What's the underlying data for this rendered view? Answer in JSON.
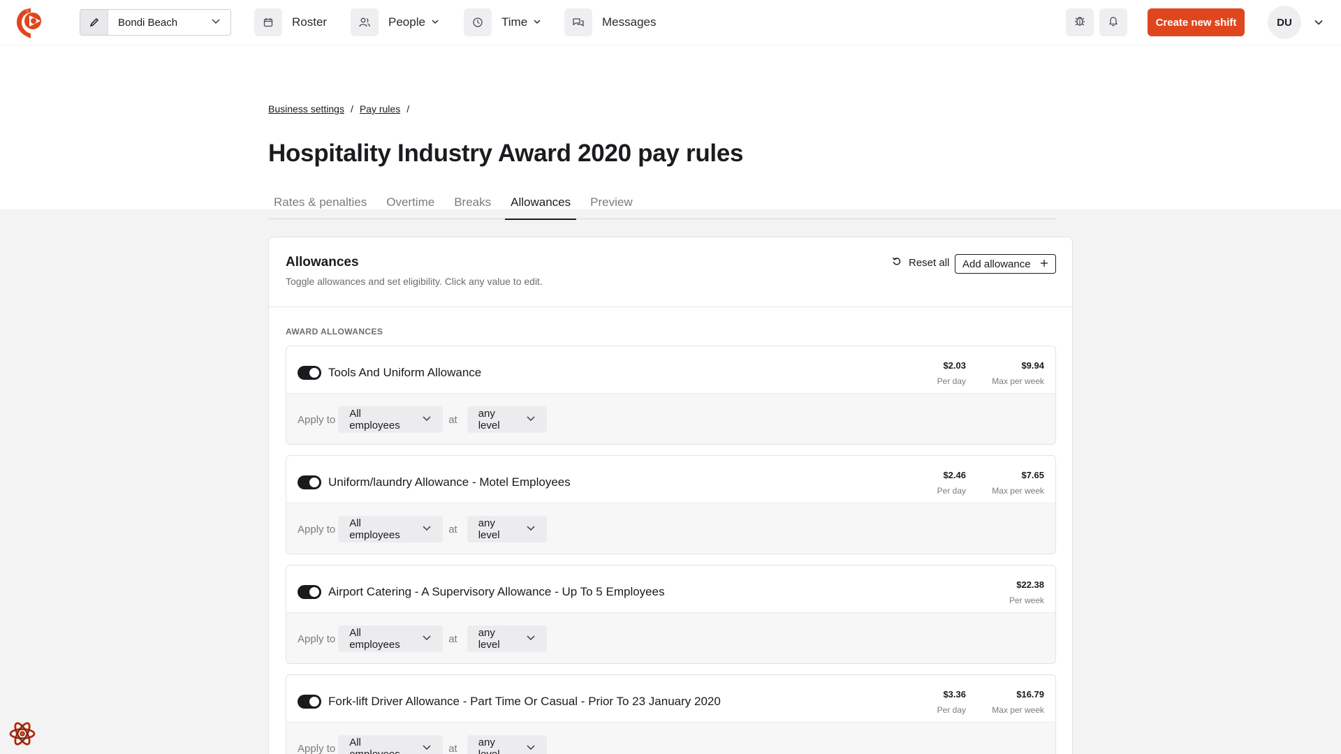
{
  "nav": {
    "location": "Bondi Beach",
    "items": [
      {
        "label": "Roster",
        "icon": "calendar-icon"
      },
      {
        "label": "People",
        "icon": "people-icon"
      },
      {
        "label": "Time",
        "icon": "clock-icon"
      },
      {
        "label": "Messages",
        "icon": "chat-icon"
      }
    ],
    "create_label": "Create new shift",
    "avatar_initials": "DU",
    "brand_color": "#e0461d"
  },
  "breadcrumb": [
    {
      "label": "Business settings"
    },
    {
      "label": "Pay rules"
    }
  ],
  "page": {
    "title": "Hospitality Industry Award 2020 pay rules",
    "tabs": [
      {
        "label": "Rates & penalties",
        "active": false
      },
      {
        "label": "Overtime",
        "active": false
      },
      {
        "label": "Breaks",
        "active": false
      },
      {
        "label": "Allowances",
        "active": true
      },
      {
        "label": "Preview",
        "active": false
      }
    ]
  },
  "card": {
    "title": "Allowances",
    "subtitle": "Toggle allowances and set eligibility. Click any value to edit.",
    "reset_label": "Reset all",
    "add_label": "Add allowance",
    "section_label": "AWARD ALLOWANCES"
  },
  "allowances": [
    {
      "name": "Tools And Uniform Allowance",
      "enabled": true,
      "value1": "$2.03",
      "unit1": "Per day",
      "value2": "$9.94",
      "unit2": "Max per week",
      "apply_label": "Apply to",
      "employees": "All employees",
      "at": "at",
      "level": "any level"
    },
    {
      "name": "Uniform/laundry Allowance - Motel Employees",
      "enabled": true,
      "value1": "$2.46",
      "unit1": "Per day",
      "value2": "$7.65",
      "unit2": "Max per week",
      "apply_label": "Apply to",
      "employees": "All employees",
      "at": "at",
      "level": "any level"
    },
    {
      "name": "Airport Catering - A Supervisory Allowance - Up To 5 Employees",
      "enabled": true,
      "value2": "$22.38",
      "unit2": "Per week",
      "apply_label": "Apply to",
      "employees": "All employees",
      "at": "at",
      "level": "any level"
    },
    {
      "name": "Fork-lift Driver Allowance - Part Time Or Casual - Prior To 23 January 2020",
      "enabled": true,
      "value1": "$3.36",
      "unit1": "Per day",
      "value2": "$16.79",
      "unit2": "Max per week",
      "apply_label": "Apply to",
      "employees": "All employees",
      "at": "at",
      "level": "any level"
    }
  ]
}
